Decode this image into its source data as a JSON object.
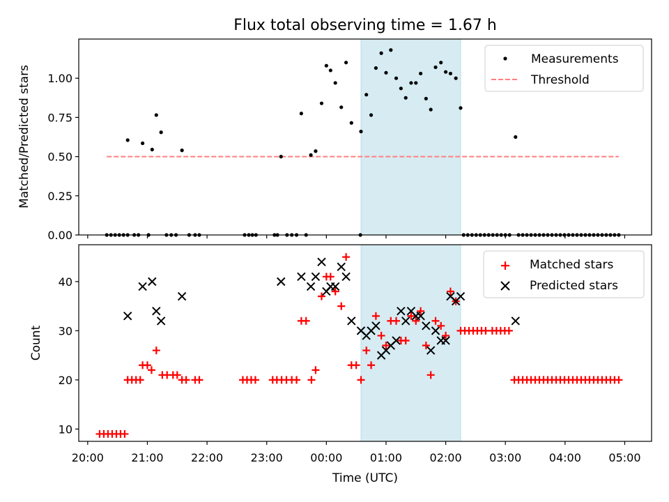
{
  "chart_data": [
    {
      "type": "scatter",
      "title": "Flux total observing time = 1.67 h",
      "xlabel": "",
      "ylabel": "Matched/Predicted stars",
      "ylim": [
        0,
        1.25
      ],
      "yticks": [
        0.0,
        0.25,
        0.5,
        0.75,
        1.0
      ],
      "yticklabels": [
        "0.00",
        "0.25",
        "0.50",
        "0.75",
        "1.00"
      ],
      "highlight_span_hours": [
        24.58,
        26.25
      ],
      "legend": {
        "placement": "top-right",
        "entries": [
          "Measurements",
          "Threshold"
        ]
      },
      "series": [
        {
          "name": "Measurements",
          "color": "#000000",
          "points": [
            [
              20.32,
              0
            ],
            [
              20.39,
              0
            ],
            [
              20.46,
              0
            ],
            [
              20.53,
              0
            ],
            [
              20.6,
              0
            ],
            [
              20.67,
              0
            ],
            [
              20.67,
              0.605
            ],
            [
              20.78,
              0
            ],
            [
              20.85,
              0
            ],
            [
              20.92,
              0.585
            ],
            [
              21.02,
              0
            ],
            [
              21.08,
              0.545
            ],
            [
              21.15,
              0.765
            ],
            [
              21.23,
              0.655
            ],
            [
              21.32,
              0
            ],
            [
              21.4,
              0
            ],
            [
              21.48,
              0
            ],
            [
              21.58,
              0.54
            ],
            [
              21.7,
              0
            ],
            [
              21.8,
              0
            ],
            [
              21.87,
              0
            ],
            [
              22.63,
              0
            ],
            [
              22.7,
              0
            ],
            [
              22.76,
              0
            ],
            [
              22.82,
              0
            ],
            [
              23.13,
              0
            ],
            [
              23.18,
              0
            ],
            [
              23.24,
              0.5
            ],
            [
              23.34,
              0
            ],
            [
              23.42,
              0
            ],
            [
              23.5,
              0
            ],
            [
              23.58,
              0.775
            ],
            [
              23.66,
              0
            ],
            [
              23.74,
              0.51
            ],
            [
              23.82,
              0.535
            ],
            [
              23.92,
              0.84
            ],
            [
              24.0,
              1.08
            ],
            [
              24.07,
              1.05
            ],
            [
              24.15,
              0.97
            ],
            [
              24.25,
              0.815
            ],
            [
              24.33,
              1.1
            ],
            [
              24.42,
              0.715
            ],
            [
              24.57,
              0
            ],
            [
              24.58,
              0.66
            ],
            [
              24.67,
              0.895
            ],
            [
              24.75,
              0.765
            ],
            [
              24.83,
              1.065
            ],
            [
              24.92,
              1.16
            ],
            [
              25.0,
              1.035
            ],
            [
              25.08,
              1.18
            ],
            [
              25.17,
              1.0
            ],
            [
              25.25,
              0.935
            ],
            [
              25.33,
              0.875
            ],
            [
              25.42,
              0.97
            ],
            [
              25.5,
              0.97
            ],
            [
              25.58,
              1.03
            ],
            [
              25.67,
              0.87
            ],
            [
              25.75,
              0.8
            ],
            [
              25.83,
              1.07
            ],
            [
              25.92,
              1.1
            ],
            [
              26.0,
              1.04
            ],
            [
              26.08,
              1.03
            ],
            [
              26.17,
              1.0
            ],
            [
              26.25,
              0.81
            ],
            [
              26.3,
              0
            ],
            [
              26.37,
              0
            ],
            [
              26.44,
              0
            ],
            [
              26.51,
              0
            ],
            [
              26.58,
              0
            ],
            [
              26.65,
              0
            ],
            [
              26.72,
              0
            ],
            [
              26.79,
              0
            ],
            [
              26.86,
              0
            ],
            [
              26.93,
              0
            ],
            [
              27.0,
              0
            ],
            [
              27.07,
              0
            ],
            [
              27.17,
              0.625
            ],
            [
              27.22,
              0
            ],
            [
              27.29,
              0
            ],
            [
              27.36,
              0
            ],
            [
              27.43,
              0
            ],
            [
              27.5,
              0
            ],
            [
              27.57,
              0
            ],
            [
              27.64,
              0
            ],
            [
              27.71,
              0
            ],
            [
              27.78,
              0
            ],
            [
              27.85,
              0
            ],
            [
              27.92,
              0
            ],
            [
              27.99,
              0
            ],
            [
              28.06,
              0
            ],
            [
              28.13,
              0
            ],
            [
              28.2,
              0
            ],
            [
              28.27,
              0
            ],
            [
              28.34,
              0
            ],
            [
              28.41,
              0
            ],
            [
              28.48,
              0
            ],
            [
              28.55,
              0
            ],
            [
              28.62,
              0
            ],
            [
              28.69,
              0
            ],
            [
              28.76,
              0
            ],
            [
              28.83,
              0
            ],
            [
              28.9,
              0
            ]
          ]
        },
        {
          "name": "Threshold",
          "color": "#ff7f7f",
          "x": [
            20.32,
            28.9
          ],
          "y": [
            0.5,
            0.5
          ]
        }
      ]
    },
    {
      "type": "scatter",
      "title": "",
      "xlabel": "Time (UTC)",
      "ylabel": "Count",
      "ylim": [
        7.5,
        47.5
      ],
      "yticks": [
        10,
        20,
        30,
        40
      ],
      "yticklabels": [
        "10",
        "20",
        "30",
        "40"
      ],
      "xlim_hours": [
        19.85,
        29.45
      ],
      "xticks_hours": [
        20,
        21,
        22,
        23,
        24,
        25,
        26,
        27,
        28,
        29
      ],
      "xticklabels": [
        "20:00",
        "21:00",
        "22:00",
        "23:00",
        "00:00",
        "01:00",
        "02:00",
        "03:00",
        "04:00",
        "05:00"
      ],
      "highlight_span_hours": [
        24.58,
        26.25
      ],
      "legend": {
        "placement": "top-right",
        "entries": [
          "Matched stars",
          "Predicted stars"
        ]
      },
      "series": [
        {
          "name": "Matched stars",
          "color": "#ff0000",
          "marker": "plus",
          "points": [
            [
              20.2,
              9
            ],
            [
              20.27,
              9
            ],
            [
              20.34,
              9
            ],
            [
              20.41,
              9
            ],
            [
              20.48,
              9
            ],
            [
              20.55,
              9
            ],
            [
              20.62,
              9
            ],
            [
              20.67,
              20
            ],
            [
              20.74,
              20
            ],
            [
              20.81,
              20
            ],
            [
              20.88,
              20
            ],
            [
              20.92,
              23
            ],
            [
              21.0,
              23
            ],
            [
              21.07,
              22
            ],
            [
              21.15,
              26
            ],
            [
              21.25,
              21
            ],
            [
              21.33,
              21
            ],
            [
              21.43,
              21
            ],
            [
              21.5,
              21
            ],
            [
              21.58,
              20
            ],
            [
              21.65,
              20
            ],
            [
              21.8,
              20
            ],
            [
              21.87,
              20
            ],
            [
              22.6,
              20
            ],
            [
              22.67,
              20
            ],
            [
              22.74,
              20
            ],
            [
              22.81,
              20
            ],
            [
              23.1,
              20
            ],
            [
              23.17,
              20
            ],
            [
              23.25,
              20
            ],
            [
              23.33,
              20
            ],
            [
              23.42,
              20
            ],
            [
              23.5,
              20
            ],
            [
              23.58,
              32
            ],
            [
              23.66,
              32
            ],
            [
              23.75,
              20
            ],
            [
              23.82,
              22
            ],
            [
              23.92,
              37
            ],
            [
              24.0,
              41
            ],
            [
              24.07,
              41
            ],
            [
              24.15,
              38
            ],
            [
              24.25,
              35
            ],
            [
              24.33,
              45
            ],
            [
              24.42,
              23
            ],
            [
              24.5,
              23
            ],
            [
              24.58,
              20
            ],
            [
              24.67,
              26
            ],
            [
              24.75,
              23
            ],
            [
              24.83,
              33
            ],
            [
              24.92,
              29
            ],
            [
              25.0,
              27
            ],
            [
              25.08,
              32
            ],
            [
              25.17,
              32
            ],
            [
              25.25,
              28
            ],
            [
              25.33,
              28
            ],
            [
              25.42,
              33
            ],
            [
              25.5,
              32
            ],
            [
              25.58,
              34
            ],
            [
              25.67,
              27
            ],
            [
              25.75,
              21
            ],
            [
              25.83,
              32
            ],
            [
              25.92,
              31
            ],
            [
              26.0,
              29
            ],
            [
              26.08,
              38
            ],
            [
              26.17,
              36
            ],
            [
              26.25,
              30
            ],
            [
              26.32,
              30
            ],
            [
              26.39,
              30
            ],
            [
              26.46,
              30
            ],
            [
              26.53,
              30
            ],
            [
              26.6,
              30
            ],
            [
              26.67,
              30
            ],
            [
              26.78,
              30
            ],
            [
              26.85,
              30
            ],
            [
              26.92,
              30
            ],
            [
              26.99,
              30
            ],
            [
              27.06,
              30
            ],
            [
              27.15,
              20
            ],
            [
              27.22,
              20
            ],
            [
              27.29,
              20
            ],
            [
              27.36,
              20
            ],
            [
              27.43,
              20
            ],
            [
              27.5,
              20
            ],
            [
              27.57,
              20
            ],
            [
              27.64,
              20
            ],
            [
              27.71,
              20
            ],
            [
              27.78,
              20
            ],
            [
              27.85,
              20
            ],
            [
              27.92,
              20
            ],
            [
              27.99,
              20
            ],
            [
              28.06,
              20
            ],
            [
              28.13,
              20
            ],
            [
              28.2,
              20
            ],
            [
              28.27,
              20
            ],
            [
              28.34,
              20
            ],
            [
              28.41,
              20
            ],
            [
              28.48,
              20
            ],
            [
              28.55,
              20
            ],
            [
              28.62,
              20
            ],
            [
              28.69,
              20
            ],
            [
              28.76,
              20
            ],
            [
              28.83,
              20
            ],
            [
              28.9,
              20
            ]
          ]
        },
        {
          "name": "Predicted stars",
          "color": "#000000",
          "marker": "x",
          "points": [
            [
              20.67,
              33
            ],
            [
              20.92,
              39
            ],
            [
              21.08,
              40
            ],
            [
              21.15,
              34
            ],
            [
              21.23,
              32
            ],
            [
              21.58,
              37
            ],
            [
              23.24,
              40
            ],
            [
              23.58,
              41
            ],
            [
              23.74,
              39
            ],
            [
              23.82,
              41
            ],
            [
              23.92,
              44
            ],
            [
              24.0,
              38
            ],
            [
              24.07,
              39
            ],
            [
              24.15,
              39
            ],
            [
              24.25,
              43
            ],
            [
              24.33,
              41
            ],
            [
              24.42,
              32
            ],
            [
              24.58,
              30
            ],
            [
              24.67,
              29
            ],
            [
              24.75,
              30
            ],
            [
              24.83,
              31
            ],
            [
              24.92,
              25
            ],
            [
              25.0,
              26
            ],
            [
              25.08,
              27
            ],
            [
              25.17,
              28
            ],
            [
              25.25,
              34
            ],
            [
              25.33,
              32
            ],
            [
              25.42,
              34
            ],
            [
              25.5,
              33
            ],
            [
              25.58,
              33
            ],
            [
              25.67,
              31
            ],
            [
              25.75,
              26
            ],
            [
              25.83,
              30
            ],
            [
              25.92,
              28
            ],
            [
              26.0,
              28
            ],
            [
              26.08,
              37
            ],
            [
              26.17,
              36
            ],
            [
              26.25,
              37
            ],
            [
              27.17,
              32
            ]
          ]
        }
      ]
    }
  ]
}
